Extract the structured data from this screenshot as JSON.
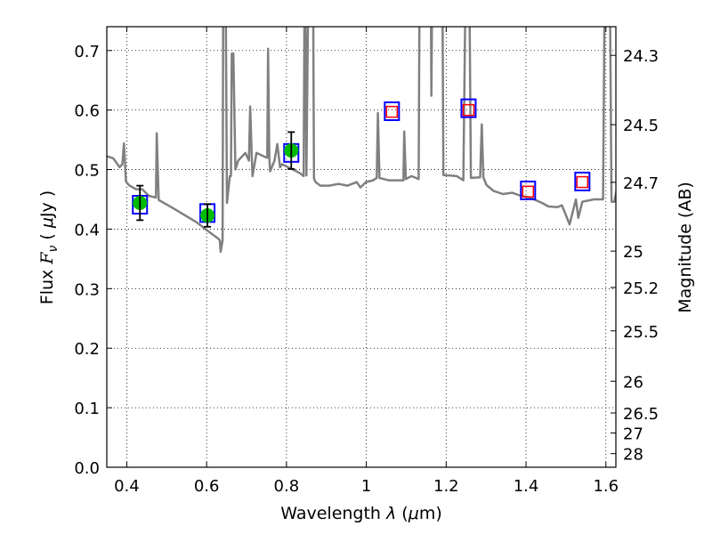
{
  "chart_data": {
    "type": "line",
    "title": "",
    "xlabel": {
      "text": "Wavelength  ",
      "sym": "λ",
      "unit_open": " (",
      "unit_mu": "μ",
      "unit_rest": "m)"
    },
    "ylabel": {
      "text": "Flux  ",
      "sym": "F",
      "sub": "ν",
      "unit_open": "  ( ",
      "unit_mu": "μ",
      "unit_rest": "Jy )"
    },
    "y2label": "Magnitude (AB)",
    "xlim": [
      0.35,
      1.625
    ],
    "ylim": [
      0.0,
      0.74
    ],
    "grid": true,
    "xticks": [
      "0.4",
      "0.6",
      "0.8",
      "1",
      "1.2",
      "1.4",
      "1.6"
    ],
    "xtick_values": [
      0.4,
      0.6,
      0.8,
      1.0,
      1.2,
      1.4,
      1.6
    ],
    "yticks": [
      "0.0",
      "0.1",
      "0.2",
      "0.3",
      "0.4",
      "0.5",
      "0.6",
      "0.7"
    ],
    "ytick_values": [
      0.0,
      0.1,
      0.2,
      0.3,
      0.4,
      0.5,
      0.6,
      0.7
    ],
    "y2ticks": [
      "24.3",
      "24.5",
      "24.7",
      "25",
      "25.2",
      "25.5",
      "26",
      "26.5",
      "27",
      "28"
    ],
    "y2tick_values": [
      24.3,
      24.5,
      24.7,
      25.0,
      25.2,
      25.5,
      26.0,
      26.5,
      27.0,
      28.0
    ],
    "ab_zeropoint_ujy": 23.9,
    "colors": {
      "spectrum": "#808080",
      "observed": "#00bb00",
      "model": "#0000ff",
      "model_inner": "#ff0000",
      "errorbar": "#000000"
    },
    "series": [
      {
        "name": "model spectrum",
        "type": "line",
        "points": [
          [
            0.338,
            0.528
          ],
          [
            0.347,
            0.523
          ],
          [
            0.366,
            0.519
          ],
          [
            0.382,
            0.504
          ],
          [
            0.389,
            0.509
          ],
          [
            0.393,
            0.544
          ],
          [
            0.398,
            0.48
          ],
          [
            0.405,
            0.474
          ],
          [
            0.423,
            0.467
          ],
          [
            0.439,
            0.467
          ],
          [
            0.455,
            0.456
          ],
          [
            0.473,
            0.453
          ],
          [
            0.475,
            0.561
          ],
          [
            0.48,
            0.449
          ],
          [
            0.519,
            0.434
          ],
          [
            0.576,
            0.411
          ],
          [
            0.599,
            0.399
          ],
          [
            0.629,
            0.384
          ],
          [
            0.633,
            0.381
          ],
          [
            0.635,
            0.362
          ],
          [
            0.64,
            0.381
          ],
          [
            0.642,
            0.9
          ],
          [
            0.647,
            0.9
          ],
          [
            0.651,
            0.444
          ],
          [
            0.658,
            0.489
          ],
          [
            0.661,
            0.489
          ],
          [
            0.663,
            0.695
          ],
          [
            0.667,
            0.695
          ],
          [
            0.672,
            0.5
          ],
          [
            0.679,
            0.515
          ],
          [
            0.697,
            0.528
          ],
          [
            0.706,
            0.515
          ],
          [
            0.709,
            0.606
          ],
          [
            0.713,
            0.521
          ],
          [
            0.715,
            0.489
          ],
          [
            0.725,
            0.528
          ],
          [
            0.747,
            0.521
          ],
          [
            0.752,
            0.52
          ],
          [
            0.754,
            0.703
          ],
          [
            0.757,
            0.52
          ],
          [
            0.759,
            0.497
          ],
          [
            0.77,
            0.515
          ],
          [
            0.777,
            0.543
          ],
          [
            0.784,
            0.504
          ],
          [
            0.789,
            0.509
          ],
          [
            0.816,
            0.5
          ],
          [
            0.834,
            0.494
          ],
          [
            0.843,
            0.489
          ],
          [
            0.846,
            0.9
          ],
          [
            0.85,
            0.49
          ],
          [
            0.856,
            0.9
          ],
          [
            0.866,
            0.9
          ],
          [
            0.869,
            0.485
          ],
          [
            0.873,
            0.479
          ],
          [
            0.885,
            0.473
          ],
          [
            0.907,
            0.473
          ],
          [
            0.93,
            0.476
          ],
          [
            0.953,
            0.473
          ],
          [
            0.976,
            0.479
          ],
          [
            0.985,
            0.47
          ],
          [
            0.999,
            0.479
          ],
          [
            1.017,
            0.482
          ],
          [
            1.026,
            0.486
          ],
          [
            1.029,
            0.595
          ],
          [
            1.033,
            0.486
          ],
          [
            1.056,
            0.482
          ],
          [
            1.079,
            0.482
          ],
          [
            1.093,
            0.482
          ],
          [
            1.095,
            0.564
          ],
          [
            1.099,
            0.484
          ],
          [
            1.113,
            0.489
          ],
          [
            1.131,
            0.484
          ],
          [
            1.134,
            0.9
          ],
          [
            1.161,
            0.9
          ],
          [
            1.163,
            0.624
          ],
          [
            1.166,
            0.9
          ],
          [
            1.19,
            0.9
          ],
          [
            1.193,
            0.491
          ],
          [
            1.227,
            0.489
          ],
          [
            1.243,
            0.482
          ],
          [
            1.25,
            0.9
          ],
          [
            1.257,
            0.9
          ],
          [
            1.262,
            0.486
          ],
          [
            1.285,
            0.487
          ],
          [
            1.289,
            0.576
          ],
          [
            1.293,
            0.487
          ],
          [
            1.301,
            0.474
          ],
          [
            1.319,
            0.464
          ],
          [
            1.342,
            0.459
          ],
          [
            1.365,
            0.461
          ],
          [
            1.387,
            0.456
          ],
          [
            1.41,
            0.453
          ],
          [
            1.44,
            0.444
          ],
          [
            1.456,
            0.438
          ],
          [
            1.479,
            0.437
          ],
          [
            1.49,
            0.44
          ],
          [
            1.509,
            0.408
          ],
          [
            1.525,
            0.45
          ],
          [
            1.531,
            0.419
          ],
          [
            1.541,
            0.446
          ],
          [
            1.57,
            0.45
          ],
          [
            1.593,
            0.45
          ],
          [
            1.598,
            0.9
          ],
          [
            1.609,
            0.9
          ],
          [
            1.614,
            0.446
          ],
          [
            1.621,
            0.446
          ],
          [
            1.63,
            0.476
          ],
          [
            1.639,
            0.441
          ]
        ]
      },
      {
        "name": "observed photometry",
        "type": "scatter",
        "x": [
          0.433,
          0.602,
          0.812
        ],
        "y": [
          0.444,
          0.423,
          0.532
        ],
        "yerr": [
          0.029,
          0.019,
          0.031
        ]
      },
      {
        "name": "model photometry",
        "type": "scatter",
        "x": [
          0.433,
          0.602,
          0.812,
          1.064,
          1.256,
          1.405,
          1.541
        ],
        "y": [
          0.441,
          0.427,
          0.528,
          0.598,
          0.603,
          0.465,
          0.48
        ]
      },
      {
        "name": "model photometry (no data)",
        "type": "scatter",
        "x": [
          1.064,
          1.256,
          1.405,
          1.541
        ],
        "y": [
          0.597,
          0.6,
          0.463,
          0.479
        ]
      }
    ]
  }
}
